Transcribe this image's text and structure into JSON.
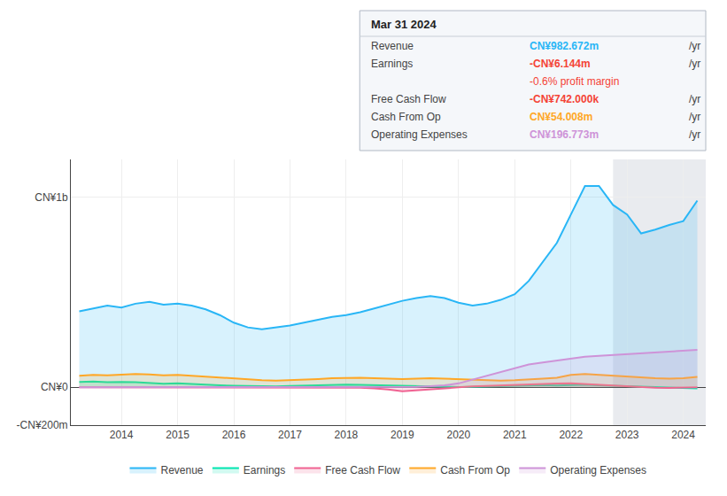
{
  "chart_data": {
    "type": "area",
    "x": [
      2013.25,
      2013.5,
      2013.75,
      2014.0,
      2014.25,
      2014.5,
      2014.75,
      2015.0,
      2015.25,
      2015.5,
      2015.75,
      2016.0,
      2016.25,
      2016.5,
      2016.75,
      2017.0,
      2017.25,
      2017.5,
      2017.75,
      2018.0,
      2018.25,
      2018.5,
      2018.75,
      2019.0,
      2019.25,
      2019.5,
      2019.75,
      2020.0,
      2020.25,
      2020.5,
      2020.75,
      2021.0,
      2021.25,
      2021.5,
      2021.75,
      2022.0,
      2022.25,
      2022.5,
      2022.75,
      2023.0,
      2023.25,
      2023.5,
      2023.75,
      2024.0,
      2024.25
    ],
    "series": [
      {
        "name": "Revenue",
        "color": "#29b6f6",
        "values": [
          400,
          415,
          430,
          420,
          440,
          450,
          435,
          440,
          430,
          410,
          380,
          340,
          315,
          305,
          315,
          325,
          340,
          355,
          370,
          380,
          395,
          415,
          435,
          455,
          470,
          480,
          470,
          445,
          430,
          440,
          460,
          490,
          560,
          660,
          760,
          910,
          1060,
          1060,
          960,
          910,
          810,
          830,
          855,
          875,
          983
        ]
      },
      {
        "name": "Earnings",
        "color": "#00e5b0",
        "values": [
          28,
          30,
          26,
          28,
          26,
          23,
          18,
          20,
          16,
          13,
          10,
          8,
          6,
          4,
          4,
          6,
          8,
          10,
          13,
          13,
          12,
          10,
          8,
          6,
          4,
          2,
          1,
          1,
          2,
          4,
          5,
          7,
          9,
          11,
          9,
          11,
          13,
          10,
          8,
          6,
          4,
          2,
          -1,
          -4,
          -6
        ]
      },
      {
        "name": "Free Cash Flow",
        "color": "#f06292",
        "values": [
          0,
          0,
          0,
          0,
          0,
          0,
          0,
          0,
          0,
          0,
          -1,
          -1,
          -2,
          -2,
          -2,
          -1,
          -1,
          0,
          0,
          0,
          -3,
          -6,
          -12,
          -22,
          -16,
          -11,
          -6,
          -1,
          4,
          7,
          9,
          11,
          14,
          17,
          19,
          21,
          17,
          14,
          9,
          4,
          -1,
          -3,
          -4,
          -3,
          -1
        ]
      },
      {
        "name": "Cash From Op",
        "color": "#ffa726",
        "values": [
          60,
          65,
          63,
          67,
          70,
          67,
          63,
          65,
          60,
          55,
          50,
          45,
          40,
          37,
          35,
          37,
          40,
          43,
          47,
          50,
          50,
          47,
          45,
          43,
          45,
          47,
          45,
          43,
          40,
          37,
          35,
          37,
          40,
          45,
          50,
          65,
          70,
          65,
          60,
          55,
          50,
          47,
          45,
          47,
          54
        ]
      },
      {
        "name": "Operating Expenses",
        "color": "#ce93d8",
        "values": [
          0,
          0,
          0,
          0,
          0,
          0,
          0,
          0,
          0,
          0,
          0,
          0,
          0,
          0,
          0,
          0,
          0,
          0,
          0,
          0,
          0,
          0,
          0,
          0,
          2,
          5,
          10,
          20,
          40,
          60,
          80,
          100,
          120,
          130,
          140,
          150,
          160,
          165,
          170,
          175,
          180,
          185,
          190,
          195,
          197
        ]
      }
    ],
    "xlim": [
      2013.1,
      2024.4
    ],
    "xticks": [
      2014,
      2015,
      2016,
      2017,
      2018,
      2019,
      2020,
      2021,
      2022,
      2023,
      2024
    ],
    "ylim": [
      -200,
      1200
    ],
    "yticks": [
      {
        "value": -200,
        "label": "-CN¥200m"
      },
      {
        "value": 0,
        "label": "CN¥0"
      },
      {
        "value": 1000,
        "label": "CN¥1b"
      }
    ],
    "grid": true,
    "legend": "bottom",
    "highlight": {
      "x0": 2022.75
    },
    "annotations": [
      {
        "text": "Mar 31 2024"
      },
      {
        "label": "Revenue",
        "text": "CN¥982.672m",
        "suffix": "/yr",
        "color": "#29b6f6"
      },
      {
        "label": "Earnings",
        "text": "-CN¥6.144m",
        "suffix": "/yr",
        "color": "#f44336",
        "sub": "-0.6% profit margin"
      },
      {
        "label": "Free Cash Flow",
        "text": "-CN¥742.000k",
        "suffix": "/yr",
        "color": "#f44336"
      },
      {
        "label": "Cash From Op",
        "text": "CN¥54.008m",
        "suffix": "/yr",
        "color": "#ffa726"
      },
      {
        "label": "Operating Expenses",
        "text": "CN¥196.773m",
        "suffix": "/yr",
        "color": "#ce93d8"
      }
    ]
  }
}
